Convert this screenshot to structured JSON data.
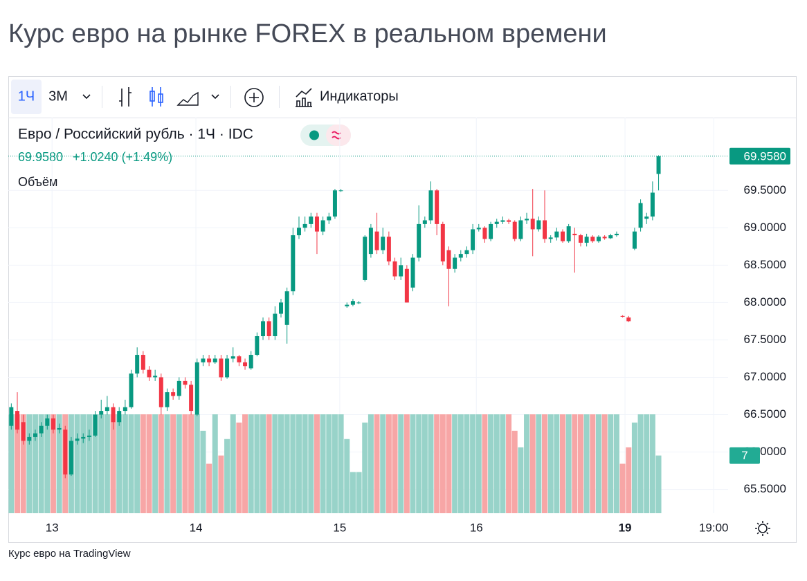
{
  "page": {
    "title": "Курс евро на рынке FOREX в реальном времени",
    "footer": "Курс евро на TradingView"
  },
  "toolbar": {
    "intervals": [
      "1Ч",
      "3М"
    ],
    "indicators": "Индикаторы"
  },
  "chart_data": {
    "type": "candlestick",
    "title": "Евро / Российский рубль · 1Ч · IDC",
    "last_price_label": "69.9580",
    "change_label": "+1.0240 (+1.49%)",
    "volume_name": "Объём",
    "volume_label": "7",
    "up_color": "#089981",
    "down_color": "#f23645",
    "volume_up_color": "#98d3c9",
    "volume_down_color": "#f7a6a6",
    "grid": true,
    "ylim": [
      65.2,
      70.4
    ],
    "yticks": [
      {
        "value": 65.5,
        "label": "65.5000"
      },
      {
        "value": 66,
        "label": "66.0000"
      },
      {
        "value": 66.5,
        "label": "66.5000"
      },
      {
        "value": 67,
        "label": "67.0000"
      },
      {
        "value": 67.5,
        "label": "67.5000"
      },
      {
        "value": 68,
        "label": "68.0000"
      },
      {
        "value": 68.5,
        "label": "68.5000"
      },
      {
        "value": 69,
        "label": "69.0000"
      },
      {
        "value": 69.5,
        "label": "69.5000"
      }
    ],
    "xlim": [
      -0.5,
      119.6
    ],
    "xticks": [
      {
        "value": 6.8,
        "label": "13"
      },
      {
        "value": 30.8,
        "label": "14"
      },
      {
        "value": 54.8,
        "label": "15"
      },
      {
        "value": 77.6,
        "label": "16"
      },
      {
        "value": 102.4,
        "label": "19",
        "bold": true
      },
      {
        "value": 117.2,
        "label": "19:00"
      }
    ],
    "vlim": [
      0,
      12
    ],
    "open": [
      66.35,
      66.55,
      66.4,
      66.15,
      66.2,
      66.25,
      66.35,
      66.45,
      66.3,
      66.3,
      65.7,
      66.15,
      66.18,
      66.2,
      66.22,
      66.5,
      66.55,
      66.6,
      66.4,
      66.55,
      66.6,
      67.05,
      67.3,
      67.1,
      67.0,
      67.0,
      66.6,
      66.8,
      66.75,
      66.95,
      66.9,
      66.5,
      67.2,
      67.25,
      67.2,
      67.25,
      67.0,
      67.25,
      67.28,
      67.2,
      67.12,
      67.3,
      67.55,
      67.75,
      67.55,
      67.85,
      67.7,
      68.15,
      68.9,
      69.0,
      69.05,
      69.15,
      68.95,
      69.1,
      69.15,
      69.5,
      67.95,
      67.97,
      68.0,
      68.3,
      68.65,
      68.95,
      68.7,
      68.88,
      68.55,
      68.35,
      68.45,
      68.2,
      68.6,
      69.05,
      69.1,
      69.5,
      69.05,
      68.7,
      68.45,
      68.6,
      68.65,
      68.7,
      68.98,
      69.0,
      68.85,
      69.05,
      69.08,
      69.1,
      69.08,
      68.85,
      69.1,
      69.12,
      68.98,
      69.1,
      68.85,
      68.87,
      68.95,
      68.82,
      68.92,
      68.9,
      68.8,
      68.88,
      68.82,
      68.88,
      68.86,
      68.9,
      67.82,
      67.8,
      68.72,
      69.0,
      69.12,
      69.15,
      69.72
    ],
    "high": [
      66.65,
      66.8,
      66.5,
      66.25,
      66.3,
      66.4,
      66.5,
      66.5,
      66.38,
      66.35,
      66.2,
      66.25,
      66.25,
      66.3,
      66.55,
      66.7,
      66.75,
      66.65,
      66.6,
      66.7,
      67.1,
      67.4,
      67.35,
      67.15,
      67.1,
      67.05,
      66.85,
      66.85,
      67.0,
      67.0,
      66.95,
      67.25,
      67.3,
      67.3,
      67.3,
      67.3,
      67.3,
      67.4,
      67.3,
      67.25,
      67.35,
      67.6,
      67.8,
      67.8,
      67.95,
      68.05,
      68.2,
      69.0,
      69.15,
      69.15,
      69.2,
      69.2,
      69.15,
      69.2,
      69.52,
      69.52,
      68.0,
      68.05,
      68.02,
      68.9,
      69.05,
      69.2,
      69.0,
      68.95,
      68.6,
      68.6,
      68.5,
      68.65,
      69.3,
      69.15,
      69.62,
      69.52,
      69.08,
      68.75,
      68.65,
      68.7,
      68.75,
      69.05,
      69.05,
      69.02,
      69.08,
      69.12,
      69.15,
      69.12,
      69.1,
      69.15,
      69.2,
      69.52,
      69.15,
      69.5,
      68.9,
      69.0,
      68.98,
      69.05,
      69.0,
      68.92,
      68.92,
      68.9,
      68.9,
      68.9,
      68.92,
      68.95,
      67.83,
      67.82,
      69.0,
      69.38,
      69.2,
      69.62,
      69.97
    ],
    "low": [
      66.3,
      66.25,
      66.1,
      66.1,
      66.15,
      66.2,
      66.3,
      66.25,
      66.25,
      65.65,
      65.68,
      66.1,
      66.12,
      66.15,
      66.2,
      66.45,
      66.5,
      66.3,
      66.35,
      66.5,
      66.58,
      67.0,
      67.05,
      66.95,
      66.95,
      66.5,
      66.55,
      66.7,
      66.7,
      66.85,
      66.5,
      66.48,
      67.15,
      67.15,
      67.18,
      66.95,
      66.98,
      67.2,
      67.15,
      67.1,
      67.1,
      67.28,
      67.5,
      67.5,
      67.5,
      67.8,
      67.45,
      68.1,
      68.85,
      68.95,
      69.0,
      68.65,
      68.9,
      69.05,
      69.12,
      69.48,
      67.93,
      67.95,
      67.98,
      68.28,
      68.6,
      68.65,
      68.65,
      68.5,
      68.3,
      68.3,
      68.0,
      68.15,
      68.55,
      69.0,
      69.05,
      68.9,
      68.5,
      67.95,
      68.4,
      68.55,
      68.6,
      68.65,
      68.95,
      68.8,
      68.82,
      69.0,
      69.05,
      69.05,
      68.82,
      68.82,
      69.05,
      68.62,
      68.95,
      68.8,
      68.8,
      68.83,
      68.8,
      68.8,
      68.4,
      68.75,
      68.75,
      68.8,
      68.8,
      68.84,
      68.85,
      68.88,
      67.8,
      67.74,
      68.7,
      68.95,
      69.05,
      69.1,
      69.5
    ],
    "close": [
      66.6,
      66.3,
      66.15,
      66.2,
      66.25,
      66.35,
      66.45,
      66.3,
      66.32,
      65.7,
      66.15,
      66.18,
      66.2,
      66.22,
      66.5,
      66.55,
      66.6,
      66.4,
      66.55,
      66.6,
      67.05,
      67.3,
      67.1,
      67.0,
      67.02,
      66.6,
      66.8,
      66.75,
      66.95,
      66.9,
      66.55,
      67.2,
      67.25,
      67.2,
      67.25,
      67.0,
      67.25,
      67.28,
      67.2,
      67.15,
      67.3,
      67.55,
      67.75,
      67.55,
      67.85,
      68.0,
      68.15,
      68.9,
      69.0,
      69.05,
      69.15,
      68.95,
      69.1,
      69.15,
      69.5,
      69.5,
      67.97,
      68.02,
      68.0,
      68.88,
      69.0,
      68.7,
      68.88,
      68.55,
      68.35,
      68.5,
      68.0,
      68.6,
      69.05,
      69.1,
      69.5,
      69.05,
      68.55,
      68.45,
      68.6,
      68.65,
      68.7,
      68.98,
      69.0,
      68.85,
      69.05,
      69.08,
      69.1,
      69.08,
      68.85,
      69.1,
      69.12,
      68.98,
      69.1,
      68.85,
      68.87,
      68.95,
      68.82,
      69.02,
      68.9,
      68.8,
      68.88,
      68.82,
      68.88,
      68.86,
      68.9,
      68.92,
      67.81,
      67.75,
      68.95,
      69.33,
      69.15,
      69.47,
      69.958
    ],
    "volume": [
      12,
      12,
      12,
      12,
      12,
      12,
      12,
      12,
      12,
      12,
      12,
      12,
      12,
      12,
      12,
      12,
      12,
      12,
      12,
      12,
      12,
      12,
      12,
      12,
      12,
      12,
      12,
      12,
      12,
      12,
      12,
      12,
      10,
      6,
      12,
      7,
      9,
      12,
      11,
      12,
      12,
      12,
      12,
      12,
      12,
      12,
      12,
      12,
      12,
      12,
      12,
      12,
      12,
      12,
      12,
      12,
      9,
      5,
      5,
      11,
      12,
      12,
      12,
      12,
      12,
      12,
      12,
      12,
      12,
      12,
      12,
      12,
      12,
      12,
      12,
      12,
      12,
      12,
      12,
      12,
      12,
      12,
      12,
      12,
      10,
      8,
      12,
      12,
      12,
      12,
      12,
      12,
      12,
      12,
      12,
      12,
      12,
      12,
      12,
      12,
      12,
      12,
      6,
      8,
      11,
      12,
      12,
      12,
      7
    ]
  }
}
